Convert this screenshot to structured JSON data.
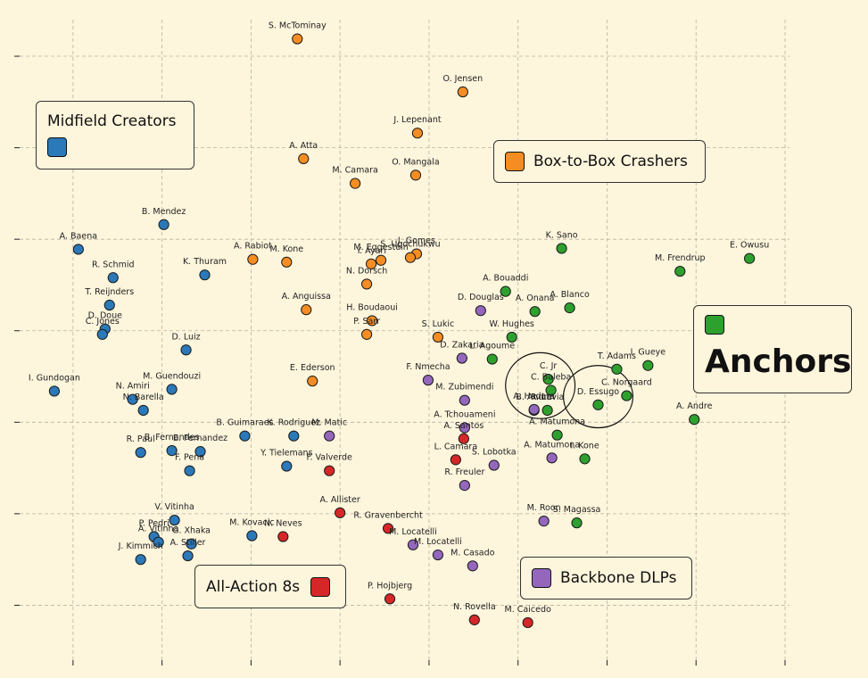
{
  "chart_data": {
    "type": "scatter",
    "title": "",
    "xlabel": "",
    "ylabel": "",
    "xlim": [
      0.4,
      9.05
    ],
    "ylim": [
      0.4,
      7.4
    ],
    "grid": true,
    "tick_labels_shown": false,
    "series": [
      {
        "name": "Midfield Creators",
        "color": "#2b79b8",
        "points": [
          {
            "label": "B. Mendez",
            "x": 2.02,
            "y": 5.16
          },
          {
            "label": "A. Baena",
            "x": 1.06,
            "y": 4.89
          },
          {
            "label": "K. Thuram",
            "x": 2.48,
            "y": 4.61
          },
          {
            "label": "R. Schmid",
            "x": 1.45,
            "y": 4.58
          },
          {
            "label": "T. Reijnders",
            "x": 1.41,
            "y": 4.28
          },
          {
            "label": "D. Doue",
            "x": 1.36,
            "y": 4.02
          },
          {
            "label": "C. Jones",
            "x": 1.33,
            "y": 3.96
          },
          {
            "label": "D. Luiz",
            "x": 2.27,
            "y": 3.79
          },
          {
            "label": "I. Gundogan",
            "x": 0.79,
            "y": 3.34
          },
          {
            "label": "M. Guendouzi",
            "x": 2.11,
            "y": 3.36
          },
          {
            "label": "N. Amiri",
            "x": 1.67,
            "y": 3.25
          },
          {
            "label": "N. Barella",
            "x": 1.79,
            "y": 3.13
          },
          {
            "label": "B. Guimaraes",
            "x": 2.93,
            "y": 2.85
          },
          {
            "label": "K. Rodriguez",
            "x": 3.48,
            "y": 2.85
          },
          {
            "label": "Y. Tielemans",
            "x": 3.4,
            "y": 2.52
          },
          {
            "label": "R. Paul",
            "x": 1.76,
            "y": 2.67
          },
          {
            "label": "B. Fernandes",
            "x": 2.11,
            "y": 2.69
          },
          {
            "label": "E. Fernandez",
            "x": 2.43,
            "y": 2.68
          },
          {
            "label": "F. Pena",
            "x": 2.31,
            "y": 2.47
          },
          {
            "label": "V. Vitinha",
            "x": 2.14,
            "y": 1.93
          },
          {
            "label": "M. Kovacic",
            "x": 3.01,
            "y": 1.76
          },
          {
            "label": "P. Pedri",
            "x": 1.91,
            "y": 1.75
          },
          {
            "label": "G. Xhaka",
            "x": 2.33,
            "y": 1.67
          },
          {
            "label": "A. Stiller",
            "x": 2.29,
            "y": 1.54
          },
          {
            "label": "J. Kimmich",
            "x": 1.76,
            "y": 1.5
          },
          {
            "label": "A. Vitinha",
            "x": 1.96,
            "y": 1.69
          }
        ]
      },
      {
        "name": "Box-to-Box Crashers",
        "color": "#f58d22",
        "points": [
          {
            "label": "S. McTominay",
            "x": 3.52,
            "y": 7.19
          },
          {
            "label": "O. Jensen",
            "x": 5.38,
            "y": 6.61
          },
          {
            "label": "J. Lepenant",
            "x": 4.87,
            "y": 6.16
          },
          {
            "label": "A. Atta",
            "x": 3.59,
            "y": 5.88
          },
          {
            "label": "O. Mangala",
            "x": 4.85,
            "y": 5.7
          },
          {
            "label": "M. Camara",
            "x": 4.17,
            "y": 5.61
          },
          {
            "label": "A. Rabiot",
            "x": 3.02,
            "y": 4.78
          },
          {
            "label": "M. Kone",
            "x": 3.4,
            "y": 4.75
          },
          {
            "label": "J. Gomes",
            "x": 4.86,
            "y": 4.84
          },
          {
            "label": "S. Ugochukwu",
            "x": 4.79,
            "y": 4.8
          },
          {
            "label": "M. Eggestein",
            "x": 4.46,
            "y": 4.77
          },
          {
            "label": "Y. Ayari",
            "x": 4.35,
            "y": 4.73
          },
          {
            "label": "N. Dorsch",
            "x": 4.3,
            "y": 4.51
          },
          {
            "label": "A. Anguissa",
            "x": 3.62,
            "y": 4.23
          },
          {
            "label": "H. Boudaoui",
            "x": 4.36,
            "y": 4.11
          },
          {
            "label": "P. Sarr",
            "x": 4.3,
            "y": 3.96
          },
          {
            "label": "S. Lukic",
            "x": 5.1,
            "y": 3.93
          },
          {
            "label": "E. Ederson",
            "x": 3.69,
            "y": 3.45
          }
        ]
      },
      {
        "name": "Anchors",
        "color": "#2ea02e",
        "points": [
          {
            "label": "K. Sano",
            "x": 6.49,
            "y": 4.9
          },
          {
            "label": "E. Owusu",
            "x": 8.6,
            "y": 4.79
          },
          {
            "label": "M. Frendrup",
            "x": 7.82,
            "y": 4.65
          },
          {
            "label": "A. Bouaddi",
            "x": 5.86,
            "y": 4.43
          },
          {
            "label": "A. Blanco",
            "x": 6.58,
            "y": 4.25
          },
          {
            "label": "A. Onana",
            "x": 6.19,
            "y": 4.21
          },
          {
            "label": "W. Hughes",
            "x": 5.93,
            "y": 3.93
          },
          {
            "label": "L. Agoume",
            "x": 5.71,
            "y": 3.69
          },
          {
            "label": "T. Adams",
            "x": 7.11,
            "y": 3.58
          },
          {
            "label": "I. Gueye",
            "x": 7.46,
            "y": 3.62
          },
          {
            "label": "C. Jr",
            "x": 6.34,
            "y": 3.47
          },
          {
            "label": "C. Baleba",
            "x": 6.37,
            "y": 3.35
          },
          {
            "label": "C. Norgaard",
            "x": 7.22,
            "y": 3.29
          },
          {
            "label": "D. Essugo",
            "x": 6.9,
            "y": 3.19
          },
          {
            "label": "R. Lavia",
            "x": 6.33,
            "y": 3.13
          },
          {
            "label": "A. Andre",
            "x": 7.98,
            "y": 3.03
          },
          {
            "label": "A. Matumona",
            "x": 6.44,
            "y": 2.86
          },
          {
            "label": "I. Kone",
            "x": 6.75,
            "y": 2.6
          },
          {
            "label": "S. Magassa",
            "x": 6.66,
            "y": 1.9
          }
        ]
      },
      {
        "name": "All-Action 8s",
        "color": "#d62728",
        "points": [
          {
            "label": "A. Santos",
            "x": 5.39,
            "y": 2.82
          },
          {
            "label": "L. Camara",
            "x": 5.3,
            "y": 2.59
          },
          {
            "label": "F. Valverde",
            "x": 3.88,
            "y": 2.47
          },
          {
            "label": "A. Allister",
            "x": 4.0,
            "y": 2.01
          },
          {
            "label": "R. Gravenbercht",
            "x": 4.54,
            "y": 1.84
          },
          {
            "label": "N. Neves",
            "x": 3.36,
            "y": 1.75
          },
          {
            "label": "P. Hojbjerg",
            "x": 4.56,
            "y": 1.07
          },
          {
            "label": "N. Rovella",
            "x": 5.51,
            "y": 0.84
          },
          {
            "label": "M. Caicedo",
            "x": 6.11,
            "y": 0.81
          }
        ]
      },
      {
        "name": "Backbone DLPs",
        "color": "#9467bd",
        "points": [
          {
            "label": "D. Douglas",
            "x": 5.58,
            "y": 4.22
          },
          {
            "label": "D. Zakaria",
            "x": 5.37,
            "y": 3.7
          },
          {
            "label": "F. Nmecha",
            "x": 4.99,
            "y": 3.46
          },
          {
            "label": "M. Zubimendi",
            "x": 5.4,
            "y": 3.24
          },
          {
            "label": "B. Andre",
            "x": 6.18,
            "y": 3.13
          },
          {
            "label": "A. Tchouameni",
            "x": 5.4,
            "y": 2.94
          },
          {
            "label": "M. Matic",
            "x": 3.88,
            "y": 2.85
          },
          {
            "label": "S. Lobotka",
            "x": 5.73,
            "y": 2.53
          },
          {
            "label": "A. Matumona",
            "x": 6.38,
            "y": 2.61
          },
          {
            "label": "R. Freuler",
            "x": 5.4,
            "y": 2.31
          },
          {
            "label": "M. Roon",
            "x": 6.29,
            "y": 1.92
          },
          {
            "label": "M. Locatelli",
            "x": 4.82,
            "y": 1.66
          },
          {
            "label": "M. Casado",
            "x": 5.49,
            "y": 1.43
          },
          {
            "label": "M. Locatelli 2",
            "x": 5.1,
            "y": 1.55
          },
          {
            "label": "A. Hadara",
            "x": 6.18,
            "y": 3.14
          }
        ]
      }
    ],
    "highlights": [
      {
        "name": "highlight-circle",
        "cx": 6.25,
        "cy": 3.4,
        "rx": 0.39,
        "ry": 0.36
      },
      {
        "name": "highlight-circle",
        "cx": 6.9,
        "cy": 3.28,
        "rx": 0.39,
        "ry": 0.34
      }
    ]
  },
  "legend": {
    "creators": {
      "label": "Midfield Creators",
      "color": "#2b79b8"
    },
    "boxtobox": {
      "label": "Box-to-Box Crashers",
      "color": "#f58d22"
    },
    "anchors": {
      "label": "Anchors",
      "color": "#2ea02e"
    },
    "allaction": {
      "label": "All-Action 8s",
      "color": "#d62728"
    },
    "backbone": {
      "label": "Backbone DLPs",
      "color": "#9467bd"
    }
  }
}
